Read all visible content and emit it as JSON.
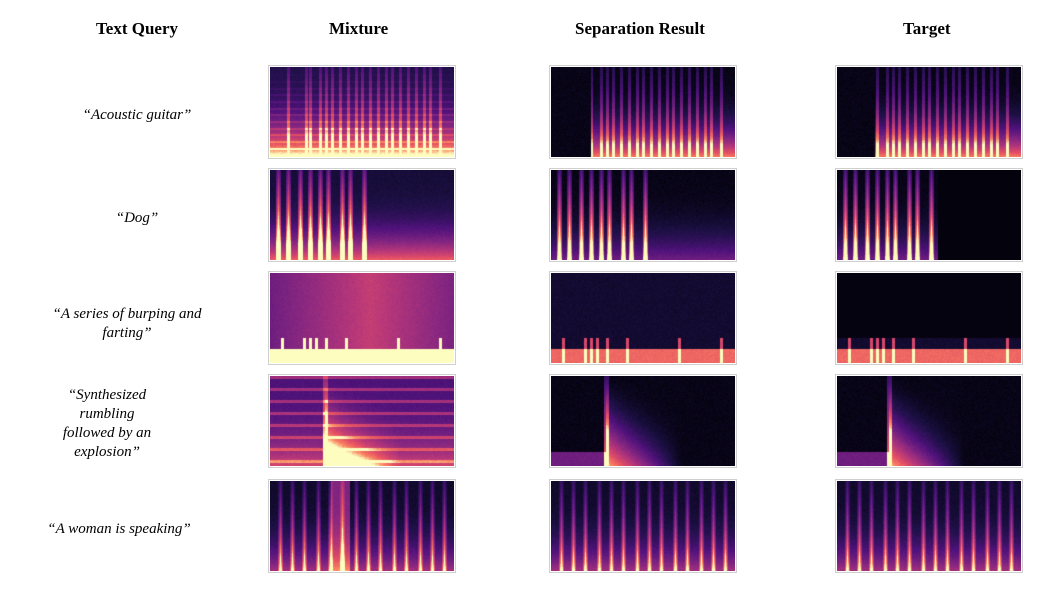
{
  "headers": {
    "text_query": "Text Query",
    "mixture": "Mixture",
    "separation_result": "Separation Result",
    "target": "Target"
  },
  "rows": [
    {
      "query": "“Acoustic guitar”"
    },
    {
      "query": "“Dog”"
    },
    {
      "query": "“A series of burping and farting”"
    },
    {
      "query": "“Synthesized rumbling followed by an explosion”"
    },
    {
      "query": "“A woman is speaking”"
    }
  ],
  "colormap": "magma"
}
